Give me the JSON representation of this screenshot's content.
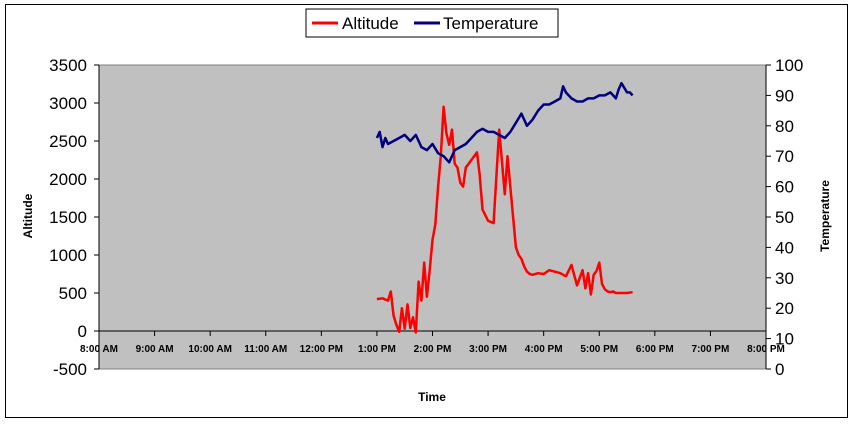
{
  "chart_data": {
    "type": "line",
    "xlabel": "Time",
    "ylabel": "Altitude",
    "y2label": "Temperature",
    "x_ticks": [
      "8:00 AM",
      "9:00 AM",
      "10:00 AM",
      "11:00 AM",
      "12:00 PM",
      "1:00 PM",
      "2:00 PM",
      "3:00 PM",
      "4:00 PM",
      "5:00 PM",
      "6:00 PM",
      "7:00 PM",
      "8:00 PM"
    ],
    "xlim": [
      8,
      20
    ],
    "ylim": [
      -500,
      3500
    ],
    "y_ticks": [
      "-500",
      "0",
      "500",
      "1000",
      "1500",
      "2000",
      "2500",
      "3000",
      "3500"
    ],
    "y2lim": [
      0,
      100
    ],
    "y2_ticks": [
      "0",
      "10",
      "20",
      "30",
      "40",
      "50",
      "60",
      "70",
      "80",
      "90",
      "100"
    ],
    "grid": false,
    "legend_position": "top-center",
    "plot_background": "#c0c0c0",
    "series": [
      {
        "name": "Altitude",
        "axis": "left",
        "color": "#ff0000",
        "x": [
          13.0,
          13.1,
          13.2,
          13.25,
          13.3,
          13.35,
          13.4,
          13.45,
          13.5,
          13.55,
          13.6,
          13.65,
          13.7,
          13.75,
          13.8,
          13.85,
          13.9,
          13.95,
          14.0,
          14.05,
          14.1,
          14.15,
          14.2,
          14.25,
          14.3,
          14.35,
          14.4,
          14.45,
          14.5,
          14.55,
          14.6,
          14.7,
          14.8,
          14.85,
          14.9,
          15.0,
          15.1,
          15.2,
          15.3,
          15.35,
          15.4,
          15.5,
          15.55,
          15.6,
          15.65,
          15.7,
          15.75,
          15.8,
          15.9,
          16.0,
          16.1,
          16.2,
          16.3,
          16.4,
          16.5,
          16.6,
          16.7,
          16.75,
          16.8,
          16.85,
          16.9,
          16.95,
          17.0,
          17.05,
          17.1,
          17.15,
          17.2,
          17.25,
          17.3,
          17.4,
          17.5,
          17.6
        ],
        "y": [
          420,
          430,
          400,
          520,
          200,
          80,
          -10,
          300,
          30,
          350,
          40,
          180,
          -20,
          650,
          400,
          900,
          450,
          800,
          1200,
          1400,
          1900,
          2300,
          2950,
          2600,
          2450,
          2650,
          2200,
          2150,
          1950,
          1900,
          2150,
          2250,
          2350,
          2050,
          1600,
          1450,
          1420,
          2650,
          1800,
          2300,
          1900,
          1100,
          1000,
          950,
          850,
          780,
          750,
          740,
          760,
          750,
          800,
          780,
          760,
          720,
          870,
          600,
          800,
          560,
          760,
          480,
          740,
          790,
          900,
          620,
          550,
          520,
          510,
          520,
          500,
          500,
          500,
          510
        ]
      },
      {
        "name": "Temperature",
        "axis": "right",
        "color": "#000080",
        "x": [
          13.0,
          13.05,
          13.1,
          13.15,
          13.2,
          13.3,
          13.4,
          13.5,
          13.6,
          13.7,
          13.8,
          13.9,
          14.0,
          14.1,
          14.2,
          14.3,
          14.4,
          14.5,
          14.6,
          14.7,
          14.8,
          14.9,
          15.0,
          15.1,
          15.2,
          15.3,
          15.4,
          15.5,
          15.6,
          15.7,
          15.8,
          15.9,
          16.0,
          16.1,
          16.2,
          16.3,
          16.35,
          16.4,
          16.5,
          16.6,
          16.7,
          16.8,
          16.9,
          17.0,
          17.1,
          17.2,
          17.3,
          17.35,
          17.4,
          17.5,
          17.55,
          17.6
        ],
        "y": [
          76,
          78,
          73,
          76,
          74,
          75,
          76,
          77,
          75,
          77,
          73,
          72,
          74,
          71,
          70,
          68,
          72,
          73,
          74,
          76,
          78,
          79,
          78,
          78,
          77,
          76,
          78,
          81,
          84,
          80,
          82,
          85,
          87,
          87,
          88,
          89,
          93,
          91,
          89,
          88,
          88,
          89,
          89,
          90,
          90,
          91,
          89,
          92,
          94,
          91,
          91,
          90
        ]
      }
    ]
  }
}
